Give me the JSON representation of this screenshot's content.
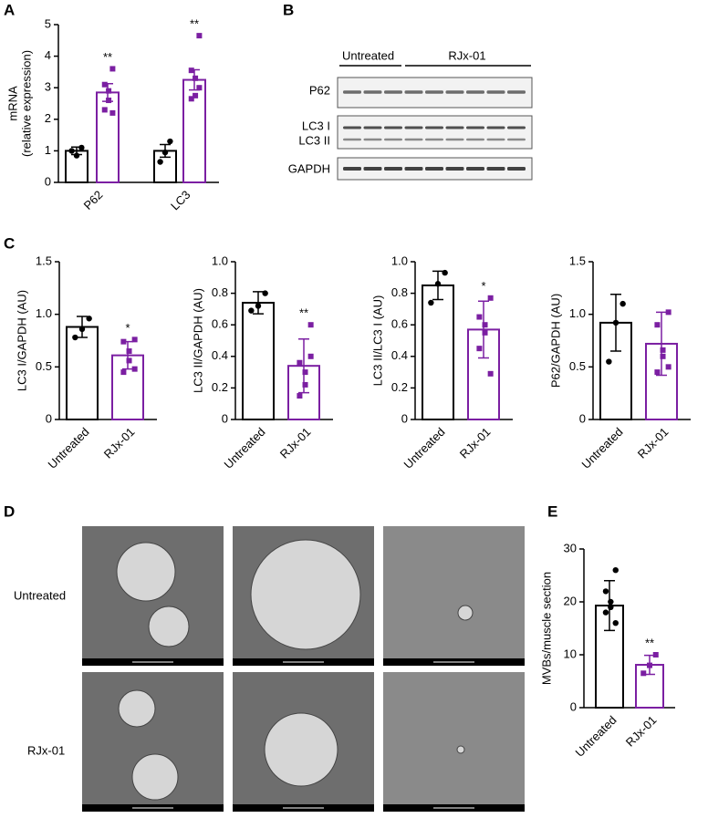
{
  "panel_labels": [
    "A",
    "B",
    "C",
    "D",
    "E"
  ],
  "blot": {
    "groups": [
      "Untreated",
      "RJx-01"
    ],
    "rows": [
      "P62",
      "LC3 I",
      "LC3 II",
      "GAPDH"
    ]
  },
  "micrographs": {
    "rows": [
      "Untreated",
      "RJx-01"
    ]
  },
  "chart_data": [
    {
      "type": "bar",
      "ylabel": [
        "mRNA",
        "(relative expression)"
      ],
      "categories": [
        "P62",
        "LC3"
      ],
      "ylim": [
        0,
        5
      ],
      "yticks": [
        0,
        1,
        2,
        3,
        4,
        5
      ],
      "series": [
        {
          "color": "#000000",
          "marker": "circle",
          "values": [
            1.0,
            1.0
          ],
          "errors": [
            0.12,
            0.2
          ],
          "points": [
            [
              1.1,
              0.85,
              1.0
            ],
            [
              1.3,
              0.95,
              0.65
            ]
          ],
          "annotations": [
            null,
            null
          ]
        },
        {
          "color": "#7b1fa2",
          "marker": "square",
          "values": [
            2.85,
            3.25
          ],
          "errors": [
            0.28,
            0.32
          ],
          "points": [
            [
              3.6,
              3.1,
              2.9,
              2.6,
              2.3,
              2.2
            ],
            [
              4.65,
              3.55,
              3.3,
              2.75,
              2.65,
              3.0
            ]
          ],
          "annotations": [
            "**",
            "**"
          ]
        }
      ]
    },
    {
      "type": "bar",
      "ylabel": [
        "LC3 I/GAPDH (AU)"
      ],
      "categories": [
        "Untreated",
        "RJx-01"
      ],
      "ylim": [
        0,
        1.5
      ],
      "yticks": [
        0,
        0.5,
        {
          "value": 1,
          "label": "1.0"
        },
        1.5
      ],
      "colors": [
        "#000000",
        "#7b1fa2"
      ],
      "markers": [
        "circle",
        "square"
      ],
      "values": [
        0.88,
        0.61
      ],
      "errors": [
        0.1,
        0.13
      ],
      "points": [
        [
          0.96,
          0.86,
          0.78
        ],
        [
          0.76,
          0.74,
          0.65,
          0.56,
          0.45,
          0.48
        ]
      ],
      "annotations": [
        null,
        "*"
      ]
    },
    {
      "type": "bar",
      "ylabel": [
        "LC3 II/GAPDH (AU)"
      ],
      "categories": [
        "Untreated",
        "RJx-01"
      ],
      "ylim": [
        0,
        1
      ],
      "yticks": [
        0,
        0.2,
        0.4,
        0.6,
        0.8,
        {
          "value": 1,
          "label": "1.0"
        }
      ],
      "colors": [
        "#000000",
        "#7b1fa2"
      ],
      "markers": [
        "circle",
        "square"
      ],
      "values": [
        0.74,
        0.34
      ],
      "errors": [
        0.07,
        0.17
      ],
      "points": [
        [
          0.8,
          0.72,
          0.69
        ],
        [
          0.6,
          0.36,
          0.3,
          0.22,
          0.15,
          0.4
        ]
      ],
      "annotations": [
        null,
        "**"
      ]
    },
    {
      "type": "bar",
      "ylabel": [
        "LC3 II/LC3 I (AU)"
      ],
      "categories": [
        "Untreated",
        "RJx-01"
      ],
      "ylim": [
        0,
        1
      ],
      "yticks": [
        0,
        0.2,
        0.4,
        0.6,
        0.8,
        {
          "value": 1,
          "label": "1.0"
        }
      ],
      "colors": [
        "#000000",
        "#7b1fa2"
      ],
      "markers": [
        "circle",
        "square"
      ],
      "values": [
        0.85,
        0.57
      ],
      "errors": [
        0.09,
        0.18
      ],
      "points": [
        [
          0.93,
          0.86,
          0.74
        ],
        [
          0.77,
          0.65,
          0.6,
          0.55,
          0.45,
          0.29
        ]
      ],
      "annotations": [
        null,
        "*"
      ]
    },
    {
      "type": "bar",
      "ylabel": [
        "P62/GAPDH (AU)"
      ],
      "categories": [
        "Untreated",
        "RJx-01"
      ],
      "ylim": [
        0,
        1.5
      ],
      "yticks": [
        0,
        0.5,
        {
          "value": 1,
          "label": "1.0"
        },
        1.5
      ],
      "colors": [
        "#000000",
        "#7b1fa2"
      ],
      "markers": [
        "circle",
        "square"
      ],
      "values": [
        0.92,
        0.72
      ],
      "errors": [
        0.27,
        0.3
      ],
      "points": [
        [
          1.1,
          0.92,
          0.55
        ],
        [
          1.02,
          0.9,
          0.66,
          0.6,
          0.45,
          0.5
        ]
      ],
      "annotations": [
        null,
        null
      ]
    },
    {
      "type": "bar",
      "ylabel": [
        "MVBs/muscle section"
      ],
      "categories": [
        "Untreated",
        "RJx-01"
      ],
      "ylim": [
        0,
        30
      ],
      "yticks": [
        0,
        10,
        20,
        30
      ],
      "colors": [
        "#000000",
        "#7b1fa2"
      ],
      "markers": [
        "circle",
        "square"
      ],
      "values": [
        19.3,
        8.1
      ],
      "errors": [
        4.7,
        1.8
      ],
      "points": [
        [
          26,
          22,
          20,
          19,
          18,
          16
        ],
        [
          10,
          8,
          6.5
        ]
      ],
      "annotations": [
        null,
        "**"
      ]
    }
  ]
}
